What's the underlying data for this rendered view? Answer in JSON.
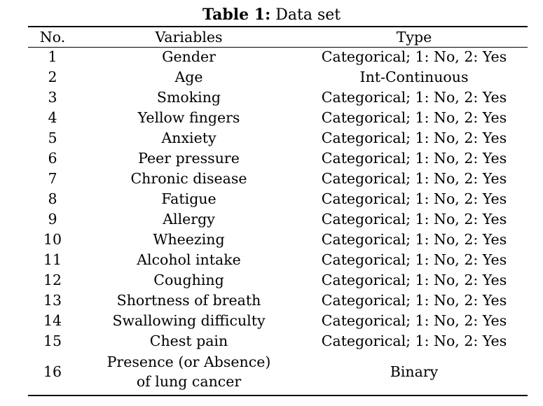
{
  "caption": {
    "label": "Table 1:",
    "text": " Data set"
  },
  "headers": {
    "no": "No.",
    "variables": "Variables",
    "type": "Type"
  },
  "rows": [
    {
      "no": "1",
      "variable": "Gender",
      "type": "Categorical; 1: No, 2: Yes"
    },
    {
      "no": "2",
      "variable": "Age",
      "type": "Int-Continuous"
    },
    {
      "no": "3",
      "variable": "Smoking",
      "type": "Categorical; 1: No, 2: Yes"
    },
    {
      "no": "4",
      "variable": "Yellow fingers",
      "type": "Categorical; 1: No, 2: Yes"
    },
    {
      "no": "5",
      "variable": "Anxiety",
      "type": "Categorical; 1: No, 2: Yes"
    },
    {
      "no": "6",
      "variable": "Peer pressure",
      "type": "Categorical; 1: No, 2: Yes"
    },
    {
      "no": "7",
      "variable": "Chronic disease",
      "type": "Categorical; 1: No, 2: Yes"
    },
    {
      "no": "8",
      "variable": "Fatigue",
      "type": "Categorical; 1: No, 2: Yes"
    },
    {
      "no": "9",
      "variable": "Allergy",
      "type": "Categorical; 1: No, 2: Yes"
    },
    {
      "no": "10",
      "variable": "Wheezing",
      "type": "Categorical; 1: No, 2: Yes"
    },
    {
      "no": "11",
      "variable": "Alcohol intake",
      "type": "Categorical; 1: No, 2: Yes"
    },
    {
      "no": "12",
      "variable": "Coughing",
      "type": "Categorical; 1: No, 2: Yes"
    },
    {
      "no": "13",
      "variable": "Shortness of breath",
      "type": "Categorical; 1: No, 2: Yes"
    },
    {
      "no": "14",
      "variable": "Swallowing difficulty",
      "type": "Categorical; 1: No, 2: Yes"
    },
    {
      "no": "15",
      "variable": "Chest pain",
      "type": "Categorical; 1: No, 2: Yes"
    }
  ],
  "last_row": {
    "no": "16",
    "variable_line1": "Presence (or Absence)",
    "variable_line2": "of lung cancer",
    "type": "Binary"
  }
}
